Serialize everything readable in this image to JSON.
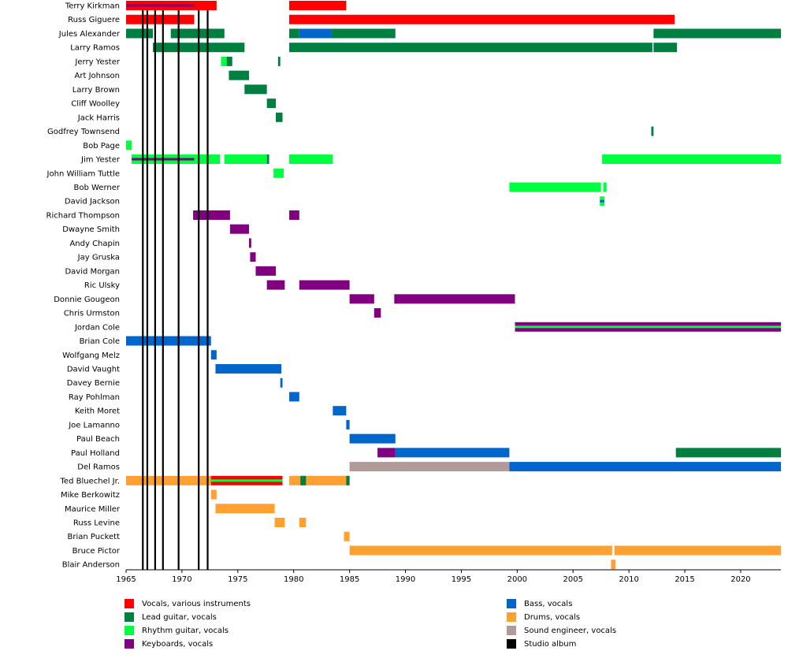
{
  "chart_data": {
    "type": "timeline",
    "xlim": [
      1965,
      2023.6
    ],
    "xticks": [
      "1965",
      "1970",
      "1975",
      "1980",
      "1985",
      "1990",
      "1995",
      "2000",
      "2005",
      "2010",
      "2015",
      "2020"
    ],
    "roles": {
      "vocals": {
        "label": "Vocals, various instruments",
        "color": "#ff0000"
      },
      "lead": {
        "label": "Lead guitar, vocals",
        "color": "#008040"
      },
      "rhythm": {
        "label": "Rhythm guitar, vocals",
        "color": "#00ff40"
      },
      "keys": {
        "label": "Keyboards, vocals",
        "color": "#800080"
      },
      "bass": {
        "label": "Bass, vocals",
        "color": "#0066cc"
      },
      "drums": {
        "label": "Drums, vocals",
        "color": "#ffa030"
      },
      "sound": {
        "label": "Sound engineer, vocals",
        "color": "#b09a9a"
      },
      "album": {
        "label": "Studio album",
        "color": "#000000"
      }
    },
    "legend_left": [
      "vocals",
      "lead",
      "rhythm",
      "keys"
    ],
    "legend_right": [
      "bass",
      "drums",
      "sound",
      "album"
    ],
    "albums": [
      1966.5,
      1966.9,
      1967.6,
      1968.3,
      1969.7,
      1971.5,
      1972.3
    ],
    "members": [
      {
        "name": "Terry Kirkman",
        "bars": [
          {
            "start": 1965,
            "end": 1973.1,
            "role": "vocals"
          },
          {
            "start": 1965,
            "end": 1971.1,
            "role": "keys",
            "style": "stripe"
          },
          {
            "start": 1979.6,
            "end": 1984.7,
            "role": "vocals"
          }
        ]
      },
      {
        "name": "Russ Giguere",
        "bars": [
          {
            "start": 1965,
            "end": 1971.1,
            "role": "vocals"
          },
          {
            "start": 1979.6,
            "end": 2014.1,
            "role": "vocals"
          }
        ]
      },
      {
        "name": "Jules Alexander",
        "bars": [
          {
            "start": 1965,
            "end": 1967.4,
            "role": "lead"
          },
          {
            "start": 1969,
            "end": 1973.8,
            "role": "lead"
          },
          {
            "start": 1979.6,
            "end": 1980.5,
            "role": "lead"
          },
          {
            "start": 1980.5,
            "end": 1983.4,
            "role": "bass"
          },
          {
            "start": 1983.4,
            "end": 1989.1,
            "role": "lead"
          },
          {
            "start": 2012.2,
            "end": 2023.6,
            "role": "lead"
          }
        ]
      },
      {
        "name": "Larry Ramos",
        "bars": [
          {
            "start": 1967.4,
            "end": 1975.6,
            "role": "lead"
          },
          {
            "start": 1979.6,
            "end": 2012.1,
            "role": "lead"
          },
          {
            "start": 2012.2,
            "end": 2014.3,
            "role": "lead"
          }
        ]
      },
      {
        "name": "Jerry Yester",
        "bars": [
          {
            "start": 1973.5,
            "end": 1974.0,
            "role": "rhythm"
          },
          {
            "start": 1974.0,
            "end": 1974.5,
            "role": "lead"
          },
          {
            "start": 1978.6,
            "end": 1978.8,
            "role": "lead"
          }
        ]
      },
      {
        "name": "Art Johnson",
        "bars": [
          {
            "start": 1974.2,
            "end": 1976.0,
            "role": "lead"
          }
        ]
      },
      {
        "name": "Larry Brown",
        "bars": [
          {
            "start": 1975.6,
            "end": 1977.6,
            "role": "lead"
          }
        ]
      },
      {
        "name": "Cliff Woolley",
        "bars": [
          {
            "start": 1977.6,
            "end": 1978.4,
            "role": "lead"
          }
        ]
      },
      {
        "name": "Jack Harris",
        "bars": [
          {
            "start": 1978.4,
            "end": 1979.0,
            "role": "lead"
          }
        ]
      },
      {
        "name": "Godfrey Townsend",
        "bars": [
          {
            "start": 2012.0,
            "end": 2012.2,
            "role": "lead"
          }
        ]
      },
      {
        "name": "Bob Page",
        "bars": [
          {
            "start": 1965,
            "end": 1965.5,
            "role": "rhythm"
          }
        ]
      },
      {
        "name": "Jim Yester",
        "bars": [
          {
            "start": 1965.5,
            "end": 1973.4,
            "role": "rhythm"
          },
          {
            "start": 1965.5,
            "end": 1971.1,
            "role": "keys",
            "style": "stripe"
          },
          {
            "start": 1973.8,
            "end": 1977.6,
            "role": "rhythm"
          },
          {
            "start": 1977.6,
            "end": 1977.8,
            "role": "lead"
          },
          {
            "start": 1979.6,
            "end": 1983.5,
            "role": "rhythm"
          },
          {
            "start": 2007.6,
            "end": 2023.6,
            "role": "rhythm"
          }
        ]
      },
      {
        "name": "John William Tuttle",
        "bars": [
          {
            "start": 1978.2,
            "end": 1979.1,
            "role": "rhythm"
          }
        ]
      },
      {
        "name": "Bob Werner",
        "bars": [
          {
            "start": 1999.3,
            "end": 2007.5,
            "role": "rhythm"
          },
          {
            "start": 2007.7,
            "end": 2008.0,
            "role": "rhythm"
          }
        ]
      },
      {
        "name": "David Jackson",
        "bars": [
          {
            "start": 2007.4,
            "end": 2007.8,
            "role": "rhythm"
          },
          {
            "start": 2007.4,
            "end": 2007.8,
            "role": "bass",
            "style": "stripe"
          }
        ]
      },
      {
        "name": "Richard Thompson",
        "bars": [
          {
            "start": 1971.0,
            "end": 1974.3,
            "role": "keys"
          },
          {
            "start": 1979.6,
            "end": 1980.5,
            "role": "keys"
          }
        ]
      },
      {
        "name": "Dwayne Smith",
        "bars": [
          {
            "start": 1974.3,
            "end": 1976.0,
            "role": "keys"
          }
        ]
      },
      {
        "name": "Andy Chapin",
        "bars": [
          {
            "start": 1976.0,
            "end": 1976.2,
            "role": "keys"
          }
        ]
      },
      {
        "name": "Jay Gruska",
        "bars": [
          {
            "start": 1976.1,
            "end": 1976.6,
            "role": "keys"
          }
        ]
      },
      {
        "name": "David Morgan",
        "bars": [
          {
            "start": 1976.6,
            "end": 1978.4,
            "role": "keys"
          }
        ]
      },
      {
        "name": "Ric Ulsky",
        "bars": [
          {
            "start": 1977.6,
            "end": 1979.2,
            "role": "keys"
          },
          {
            "start": 1980.5,
            "end": 1985.0,
            "role": "keys"
          }
        ]
      },
      {
        "name": "Donnie Gougeon",
        "bars": [
          {
            "start": 1985.0,
            "end": 1987.2,
            "role": "keys"
          },
          {
            "start": 1989.0,
            "end": 1999.8,
            "role": "keys"
          }
        ]
      },
      {
        "name": "Chris Urmston",
        "bars": [
          {
            "start": 1987.2,
            "end": 1987.8,
            "role": "keys"
          }
        ]
      },
      {
        "name": "Jordan Cole",
        "bars": [
          {
            "start": 1999.8,
            "end": 2023.6,
            "role": "keys"
          },
          {
            "start": 1999.8,
            "end": 2023.6,
            "role": "rhythm",
            "style": "stripe"
          }
        ]
      },
      {
        "name": "Brian Cole",
        "bars": [
          {
            "start": 1965,
            "end": 1972.6,
            "role": "bass"
          }
        ]
      },
      {
        "name": "Wolfgang Melz",
        "bars": [
          {
            "start": 1972.6,
            "end": 1973.1,
            "role": "bass"
          }
        ]
      },
      {
        "name": "David Vaught",
        "bars": [
          {
            "start": 1973.0,
            "end": 1978.9,
            "role": "bass"
          }
        ]
      },
      {
        "name": "Davey Bernie",
        "bars": [
          {
            "start": 1978.8,
            "end": 1979.0,
            "role": "bass"
          }
        ]
      },
      {
        "name": "Ray Pohlman",
        "bars": [
          {
            "start": 1979.6,
            "end": 1980.5,
            "role": "bass"
          }
        ]
      },
      {
        "name": "Keith Moret",
        "bars": [
          {
            "start": 1983.5,
            "end": 1984.7,
            "role": "bass"
          }
        ]
      },
      {
        "name": "Joe Lamanno",
        "bars": [
          {
            "start": 1984.7,
            "end": 1985.0,
            "role": "bass"
          }
        ]
      },
      {
        "name": "Paul Beach",
        "bars": [
          {
            "start": 1985.0,
            "end": 1989.1,
            "role": "bass"
          }
        ]
      },
      {
        "name": "Paul Holland",
        "bars": [
          {
            "start": 1987.5,
            "end": 1989.1,
            "role": "keys"
          },
          {
            "start": 1989.1,
            "end": 1999.3,
            "role": "bass"
          },
          {
            "start": 2014.2,
            "end": 2023.6,
            "role": "lead"
          }
        ]
      },
      {
        "name": "Del Ramos",
        "bars": [
          {
            "start": 1985.0,
            "end": 1999.3,
            "role": "sound"
          },
          {
            "start": 1999.3,
            "end": 2023.6,
            "role": "bass"
          }
        ]
      },
      {
        "name": "Ted Bluechel Jr.",
        "bars": [
          {
            "start": 1965,
            "end": 1972.6,
            "role": "drums"
          },
          {
            "start": 1972.6,
            "end": 1979.0,
            "role": "vocals"
          },
          {
            "start": 1972.6,
            "end": 1979.0,
            "role": "rhythm",
            "style": "stripe"
          },
          {
            "start": 1979.6,
            "end": 1985.0,
            "role": "drums"
          },
          {
            "start": 1980.6,
            "end": 1981.1,
            "role": "lead"
          },
          {
            "start": 1984.7,
            "end": 1985.0,
            "role": "lead"
          }
        ]
      },
      {
        "name": "Mike Berkowitz",
        "bars": [
          {
            "start": 1972.6,
            "end": 1973.1,
            "role": "drums"
          }
        ]
      },
      {
        "name": "Maurice Miller",
        "bars": [
          {
            "start": 1973.0,
            "end": 1978.3,
            "role": "drums"
          }
        ]
      },
      {
        "name": "Russ Levine",
        "bars": [
          {
            "start": 1978.3,
            "end": 1979.2,
            "role": "drums"
          },
          {
            "start": 1980.5,
            "end": 1981.1,
            "role": "drums"
          }
        ]
      },
      {
        "name": "Brian Puckett",
        "bars": [
          {
            "start": 1984.5,
            "end": 1985.0,
            "role": "drums"
          }
        ]
      },
      {
        "name": "Bruce Pictor",
        "bars": [
          {
            "start": 1985.0,
            "end": 2008.5,
            "role": "drums"
          },
          {
            "start": 2008.7,
            "end": 2023.6,
            "role": "drums"
          }
        ]
      },
      {
        "name": "Blair Anderson",
        "bars": [
          {
            "start": 2008.4,
            "end": 2008.8,
            "role": "drums"
          }
        ]
      }
    ]
  }
}
